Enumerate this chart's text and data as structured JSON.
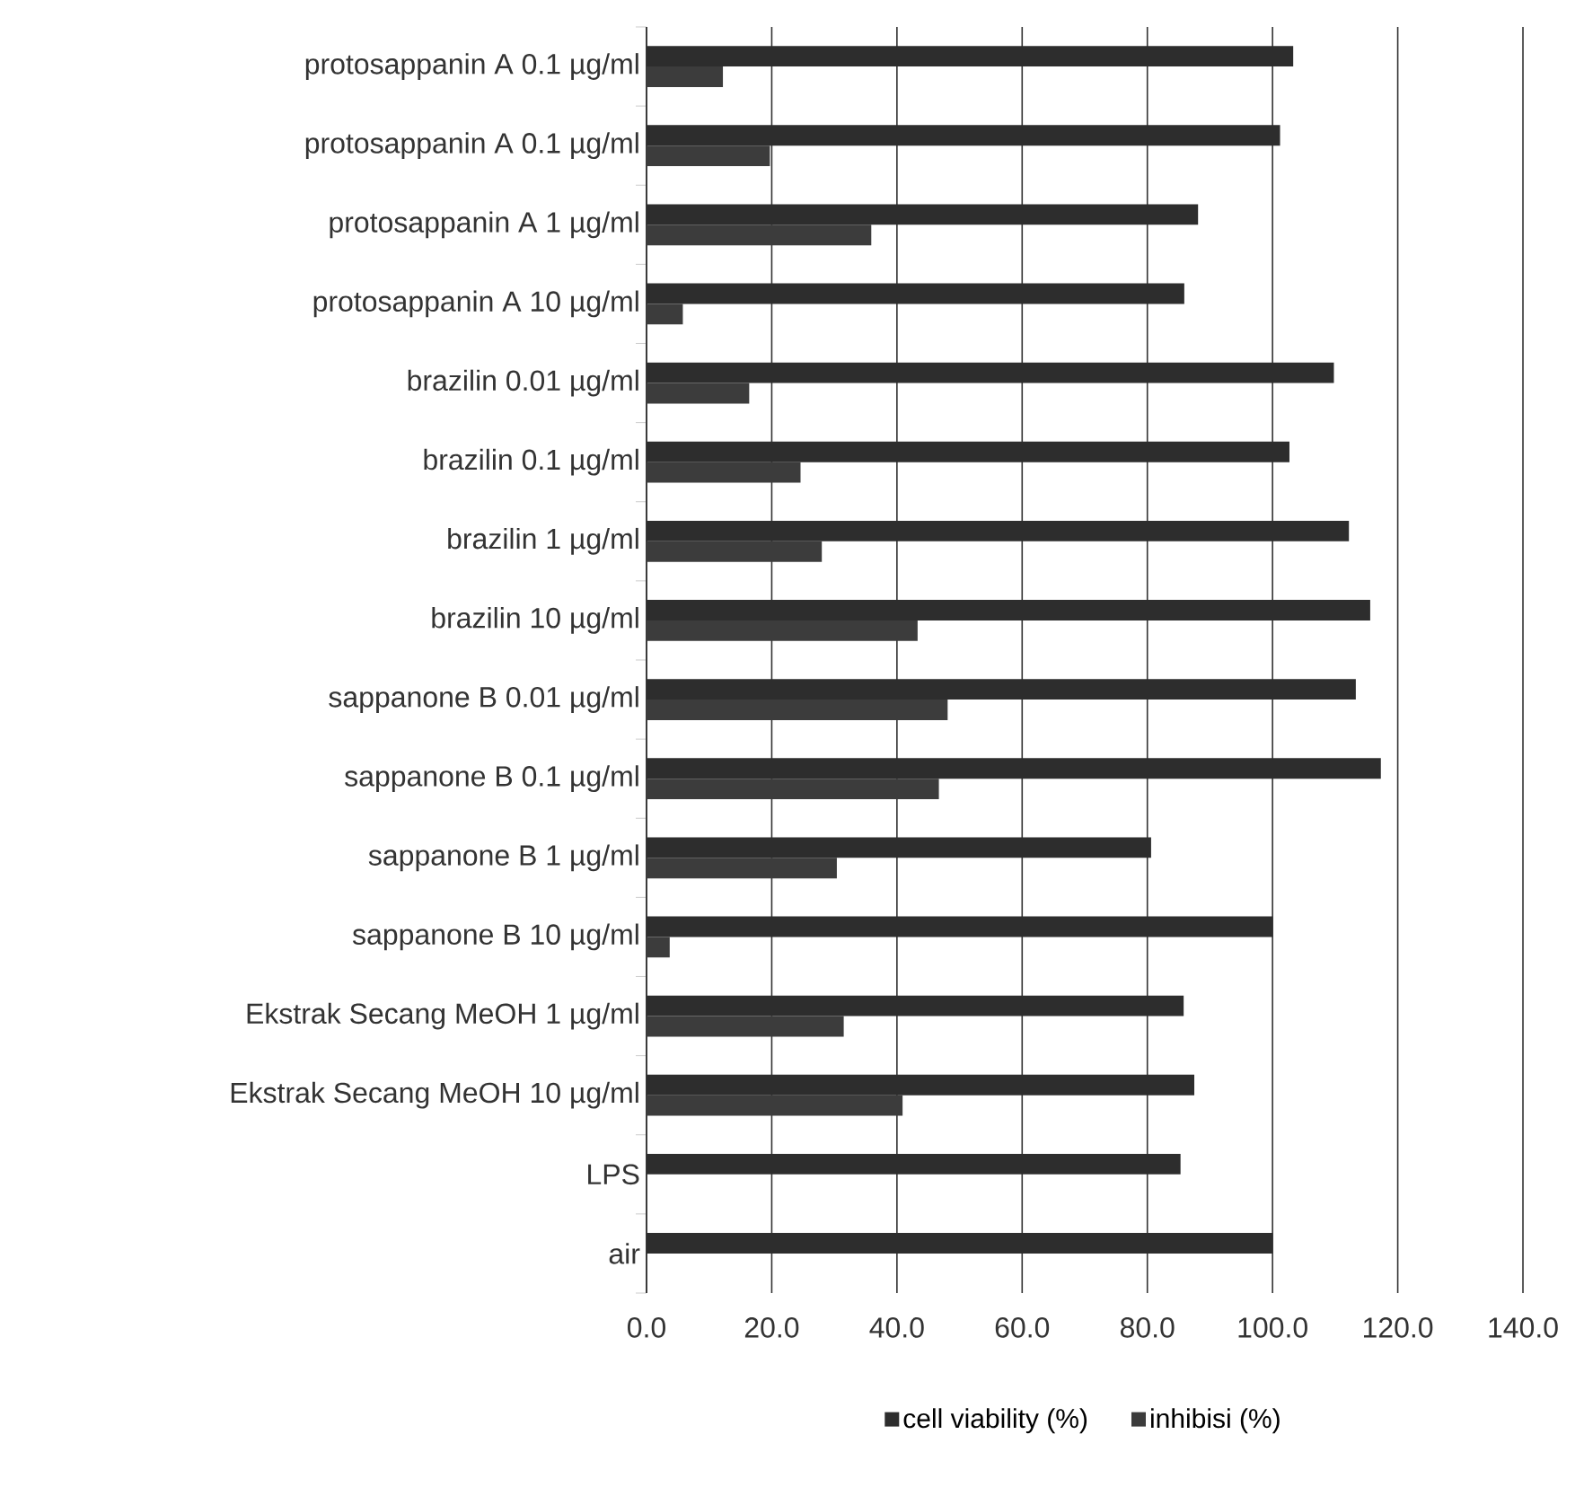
{
  "chart_data": {
    "type": "bar",
    "orientation": "horizontal",
    "categories": [
      "protosappanin A 0.1 µg/ml",
      "protosappanin A 0.1 µg/ml",
      "protosappanin A 1 µg/ml",
      "protosappanin A 10 µg/ml",
      "brazilin 0.01 µg/ml",
      "brazilin 0.1 µg/ml",
      "brazilin 1 µg/ml",
      "brazilin 10 µg/ml",
      "sappanone B 0.01 µg/ml",
      "sappanone B 0.1 µg/ml",
      "sappanone B 1 µg/ml",
      "sappanone B 10 µg/ml",
      "Ekstrak Secang MeOH 1 µg/ml",
      "Ekstrak Secang MeOH 10 µg/ml",
      "LPS",
      "air"
    ],
    "series": [
      {
        "name": "cell viability (%)",
        "color": "#2d2d2d",
        "values": [
          103.3,
          101.2,
          88.1,
          85.9,
          109.8,
          102.7,
          112.2,
          115.6,
          113.3,
          117.3,
          80.6,
          100.0,
          85.8,
          87.5,
          85.3,
          100.0
        ]
      },
      {
        "name": "inhibisi (%)",
        "color": "#3c3c3c",
        "values": [
          12.2,
          19.7,
          35.9,
          5.8,
          16.4,
          24.6,
          28.0,
          43.3,
          48.1,
          46.7,
          30.4,
          3.7,
          31.5,
          40.9,
          0,
          0
        ]
      }
    ],
    "xlim": [
      0,
      140
    ],
    "xticks": [
      {
        "value": 0,
        "label": "0.0"
      },
      {
        "value": 20,
        "label": "20.0"
      },
      {
        "value": 40,
        "label": "40.0"
      },
      {
        "value": 60,
        "label": "60.0"
      },
      {
        "value": 80,
        "label": "80.0"
      },
      {
        "value": 100,
        "label": "100.0"
      },
      {
        "value": 120,
        "label": "120.0"
      },
      {
        "value": 140,
        "label": "140.0"
      }
    ],
    "grid": "x",
    "legend": "bottom"
  }
}
